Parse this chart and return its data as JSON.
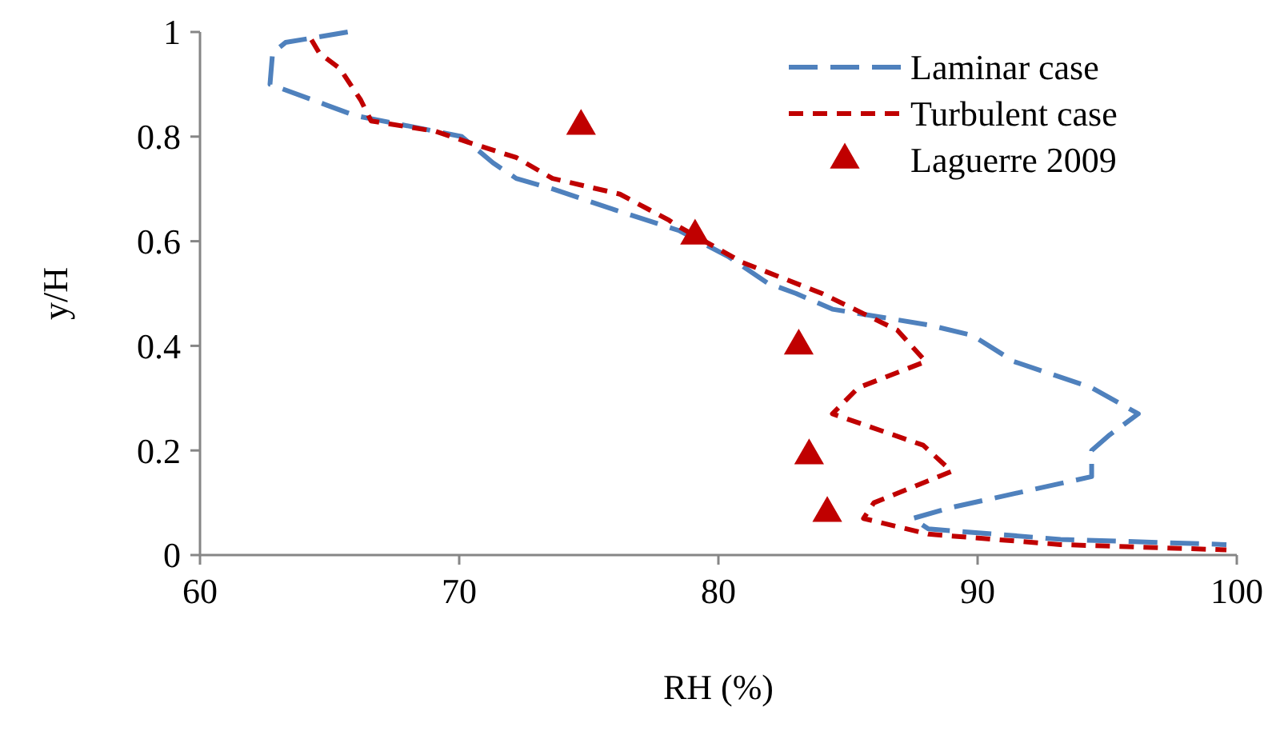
{
  "chart_data": {
    "type": "line",
    "xlabel": "RH (%)",
    "ylabel": "y/H",
    "xlim": [
      60,
      100
    ],
    "xticks": [
      60,
      70,
      80,
      90,
      100
    ],
    "ylim": [
      0,
      1
    ],
    "yticks": [
      0,
      0.2,
      0.4,
      0.6,
      0.8,
      1
    ],
    "grid": false,
    "legend": "top right",
    "series": [
      {
        "name": "Laminar case",
        "color": "#4f81bd",
        "line_style": "dashed",
        "marker": "none",
        "x": [
          65.7,
          63.3,
          62.8,
          62.7,
          64.9,
          66.0,
          69.1,
          70.1,
          71.3,
          72.2,
          73.6,
          76.0,
          78.5,
          80.4,
          81.9,
          83.0,
          84.4,
          88.1,
          89.8,
          91.4,
          94.4,
          96.2,
          95.1,
          94.4,
          94.4,
          88.9,
          87.5,
          88.1,
          93.2,
          99.6
        ],
        "values": [
          1.0,
          0.98,
          0.96,
          0.9,
          0.86,
          0.84,
          0.81,
          0.8,
          0.75,
          0.72,
          0.7,
          0.66,
          0.62,
          0.57,
          0.52,
          0.5,
          0.47,
          0.44,
          0.42,
          0.37,
          0.32,
          0.27,
          0.23,
          0.2,
          0.15,
          0.09,
          0.07,
          0.05,
          0.03,
          0.02
        ]
      },
      {
        "name": "Turbulent case",
        "color": "#c00000",
        "line_style": "dashed",
        "marker": "none",
        "x": [
          64.3,
          64.6,
          65.4,
          66.2,
          66.6,
          69.1,
          70.3,
          72.2,
          73.6,
          76.2,
          78.1,
          78.4,
          80.9,
          84.0,
          86.9,
          88.0,
          85.4,
          84.4,
          87.9,
          89.0,
          86.0,
          85.6,
          88.1,
          93.2,
          99.6
        ],
        "values": [
          0.985,
          0.96,
          0.93,
          0.87,
          0.83,
          0.81,
          0.79,
          0.76,
          0.72,
          0.69,
          0.64,
          0.63,
          0.56,
          0.5,
          0.43,
          0.37,
          0.32,
          0.27,
          0.21,
          0.16,
          0.1,
          0.07,
          0.04,
          0.02,
          0.01
        ]
      },
      {
        "name": "Laguerre 2009",
        "type": "scatter",
        "color": "#c00000",
        "marker": "triangle",
        "x": [
          74.7,
          79.1,
          83.1,
          83.5,
          84.2
        ],
        "values": [
          0.82,
          0.61,
          0.4,
          0.19,
          0.08
        ]
      }
    ]
  }
}
